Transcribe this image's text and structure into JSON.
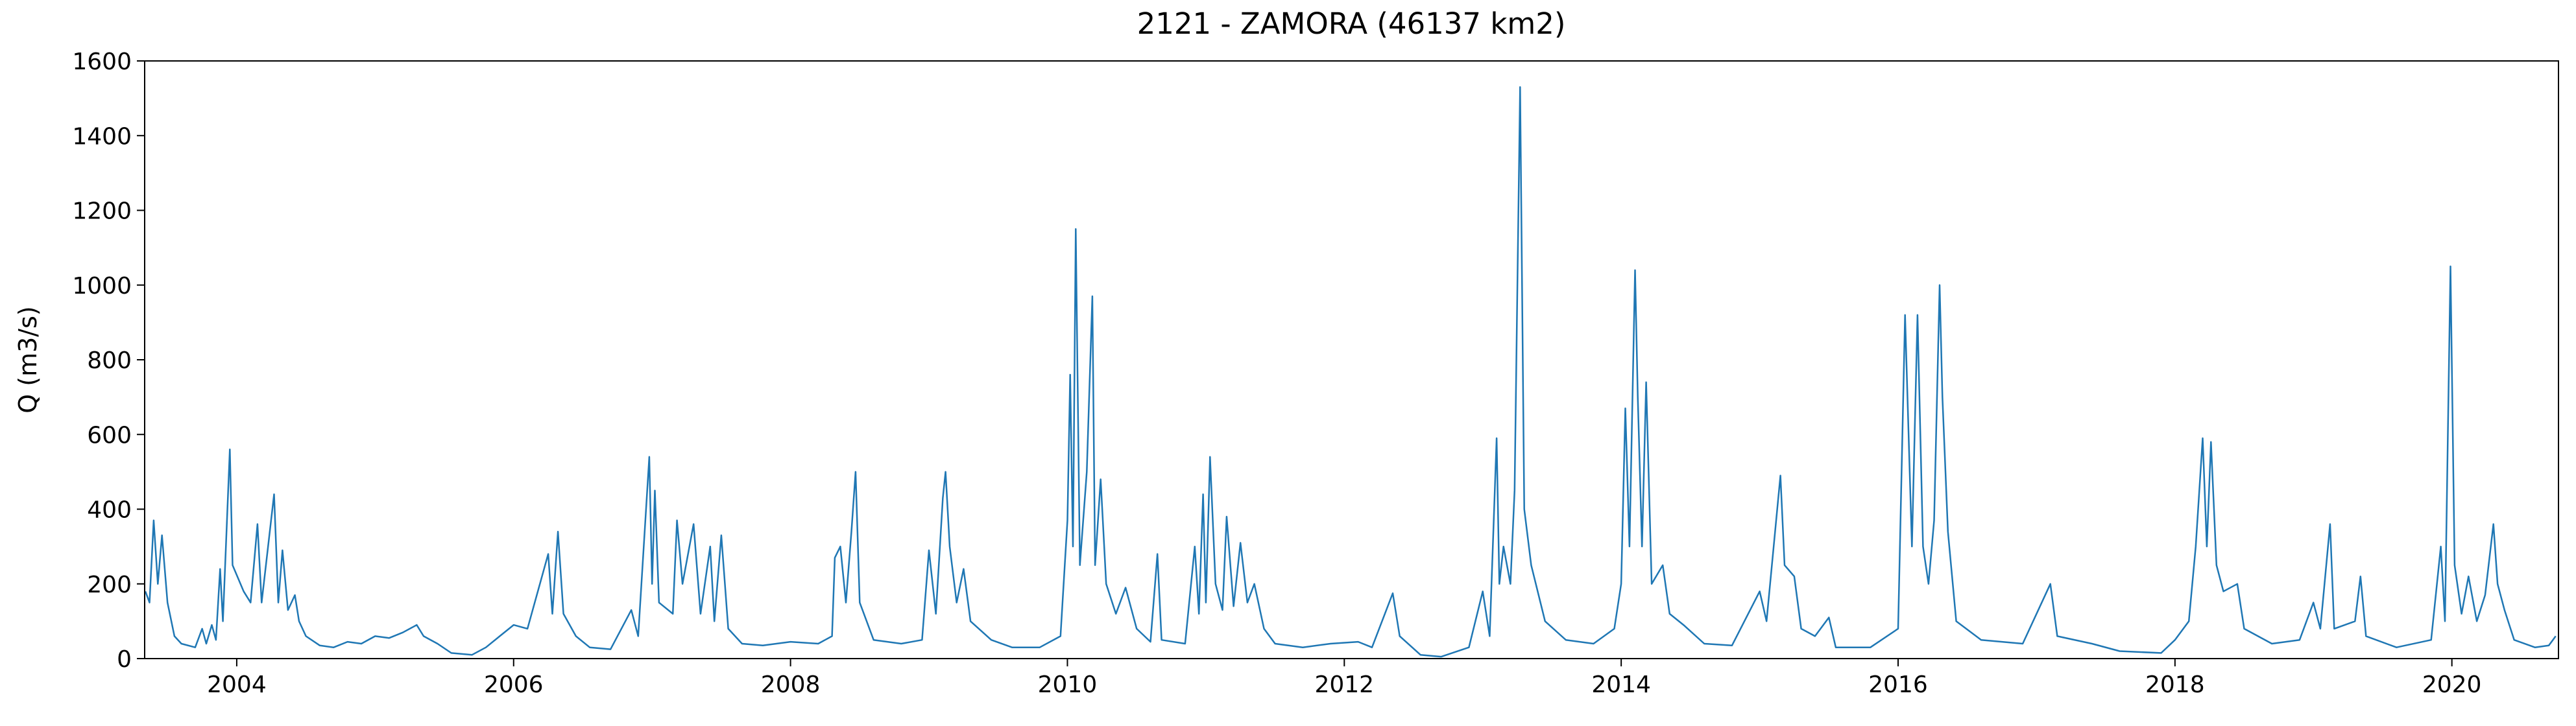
{
  "chart_data": {
    "type": "line",
    "title": "2121 - ZAMORA (46137 km2)",
    "y_label": "Q (m3/s)",
    "x": [
      2003.34,
      2003.37,
      2003.4,
      2003.43,
      2003.46,
      2003.5,
      2003.55,
      2003.6,
      2003.7,
      2003.75,
      2003.78,
      2003.82,
      2003.85,
      2003.88,
      2003.9,
      2003.95,
      2003.97,
      2004.05,
      2004.1,
      2004.15,
      2004.18,
      2004.27,
      2004.3,
      2004.33,
      2004.37,
      2004.42,
      2004.45,
      2004.5,
      2004.6,
      2004.7,
      2004.8,
      2004.9,
      2005.0,
      2005.1,
      2005.2,
      2005.3,
      2005.35,
      2005.45,
      2005.55,
      2005.7,
      2005.8,
      2005.9,
      2006.0,
      2006.1,
      2006.25,
      2006.28,
      2006.32,
      2006.36,
      2006.45,
      2006.55,
      2006.7,
      2006.85,
      2006.9,
      2006.98,
      2007.0,
      2007.02,
      2007.05,
      2007.15,
      2007.18,
      2007.22,
      2007.3,
      2007.35,
      2007.42,
      2007.45,
      2007.5,
      2007.55,
      2007.65,
      2007.8,
      2008.0,
      2008.2,
      2008.3,
      2008.32,
      2008.36,
      2008.4,
      2008.44,
      2008.47,
      2008.5,
      2008.6,
      2008.8,
      2008.95,
      2009.0,
      2009.05,
      2009.1,
      2009.12,
      2009.15,
      2009.2,
      2009.25,
      2009.3,
      2009.45,
      2009.6,
      2009.8,
      2009.95,
      2010.0,
      2010.02,
      2010.04,
      2010.06,
      2010.09,
      2010.14,
      2010.18,
      2010.2,
      2010.24,
      2010.28,
      2010.35,
      2010.42,
      2010.5,
      2010.6,
      2010.65,
      2010.68,
      2010.85,
      2010.92,
      2010.95,
      2010.98,
      2011.0,
      2011.03,
      2011.07,
      2011.12,
      2011.15,
      2011.2,
      2011.25,
      2011.3,
      2011.35,
      2011.42,
      2011.5,
      2011.7,
      2011.9,
      2012.1,
      2012.2,
      2012.35,
      2012.4,
      2012.55,
      2012.7,
      2012.9,
      2013.0,
      2013.05,
      2013.1,
      2013.12,
      2013.15,
      2013.2,
      2013.23,
      2013.27,
      2013.3,
      2013.35,
      2013.45,
      2013.6,
      2013.8,
      2013.95,
      2014.0,
      2014.03,
      2014.06,
      2014.1,
      2014.12,
      2014.15,
      2014.18,
      2014.22,
      2014.3,
      2014.35,
      2014.45,
      2014.6,
      2014.8,
      2015.0,
      2015.05,
      2015.15,
      2015.18,
      2015.25,
      2015.3,
      2015.4,
      2015.5,
      2015.55,
      2015.8,
      2016.0,
      2016.05,
      2016.1,
      2016.14,
      2016.18,
      2016.22,
      2016.26,
      2016.3,
      2016.32,
      2016.36,
      2016.42,
      2016.6,
      2016.9,
      2017.1,
      2017.15,
      2017.4,
      2017.6,
      2017.9,
      2018.0,
      2018.1,
      2018.15,
      2018.2,
      2018.23,
      2018.26,
      2018.3,
      2018.35,
      2018.45,
      2018.5,
      2018.7,
      2018.9,
      2019.0,
      2019.05,
      2019.12,
      2019.15,
      2019.3,
      2019.34,
      2019.38,
      2019.6,
      2019.85,
      2019.92,
      2019.95,
      2019.99,
      2020.02,
      2020.07,
      2020.12,
      2020.18,
      2020.24,
      2020.3,
      2020.33,
      2020.38,
      2020.45,
      2020.6,
      2020.7,
      2020.75
    ],
    "series": [
      {
        "color": "#1f77b4",
        "values": [
          180,
          150,
          370,
          200,
          330,
          150,
          60,
          40,
          30,
          80,
          40,
          90,
          50,
          240,
          100,
          560,
          250,
          180,
          150,
          360,
          150,
          440,
          150,
          290,
          130,
          170,
          100,
          60,
          35,
          30,
          45,
          40,
          60,
          55,
          70,
          90,
          60,
          40,
          15,
          10,
          30,
          60,
          90,
          80,
          280,
          120,
          340,
          120,
          60,
          30,
          25,
          130,
          60,
          540,
          200,
          450,
          150,
          120,
          370,
          200,
          360,
          120,
          300,
          100,
          330,
          80,
          40,
          35,
          45,
          40,
          60,
          270,
          300,
          150,
          340,
          500,
          150,
          50,
          40,
          50,
          290,
          120,
          430,
          500,
          300,
          150,
          240,
          100,
          50,
          30,
          30,
          60,
          370,
          760,
          300,
          1150,
          250,
          500,
          970,
          250,
          480,
          200,
          120,
          190,
          80,
          45,
          280,
          50,
          40,
          300,
          120,
          440,
          150,
          540,
          200,
          130,
          380,
          140,
          310,
          150,
          200,
          80,
          40,
          30,
          40,
          45,
          30,
          175,
          60,
          10,
          5,
          30,
          180,
          60,
          590,
          200,
          300,
          200,
          450,
          1530,
          400,
          250,
          100,
          50,
          40,
          80,
          200,
          670,
          300,
          1040,
          700,
          300,
          740,
          200,
          250,
          120,
          90,
          40,
          35,
          180,
          100,
          490,
          250,
          220,
          80,
          60,
          110,
          30,
          30,
          80,
          920,
          300,
          920,
          300,
          200,
          370,
          1000,
          700,
          340,
          100,
          50,
          40,
          200,
          60,
          40,
          20,
          15,
          50,
          100,
          300,
          590,
          300,
          580,
          250,
          180,
          200,
          80,
          40,
          50,
          150,
          80,
          360,
          80,
          100,
          220,
          60,
          30,
          50,
          300,
          100,
          1050,
          250,
          120,
          220,
          100,
          170,
          360,
          200,
          130,
          50,
          30,
          35,
          60
        ]
      }
    ],
    "xlim": [
      2003.335,
      2020.77
    ],
    "ylim": [
      0,
      1600
    ],
    "xticks": [
      2004,
      2006,
      2008,
      2010,
      2012,
      2014,
      2016,
      2018,
      2020
    ],
    "yticks": [
      0,
      200,
      400,
      600,
      800,
      1000,
      1200,
      1400,
      1600
    ]
  }
}
